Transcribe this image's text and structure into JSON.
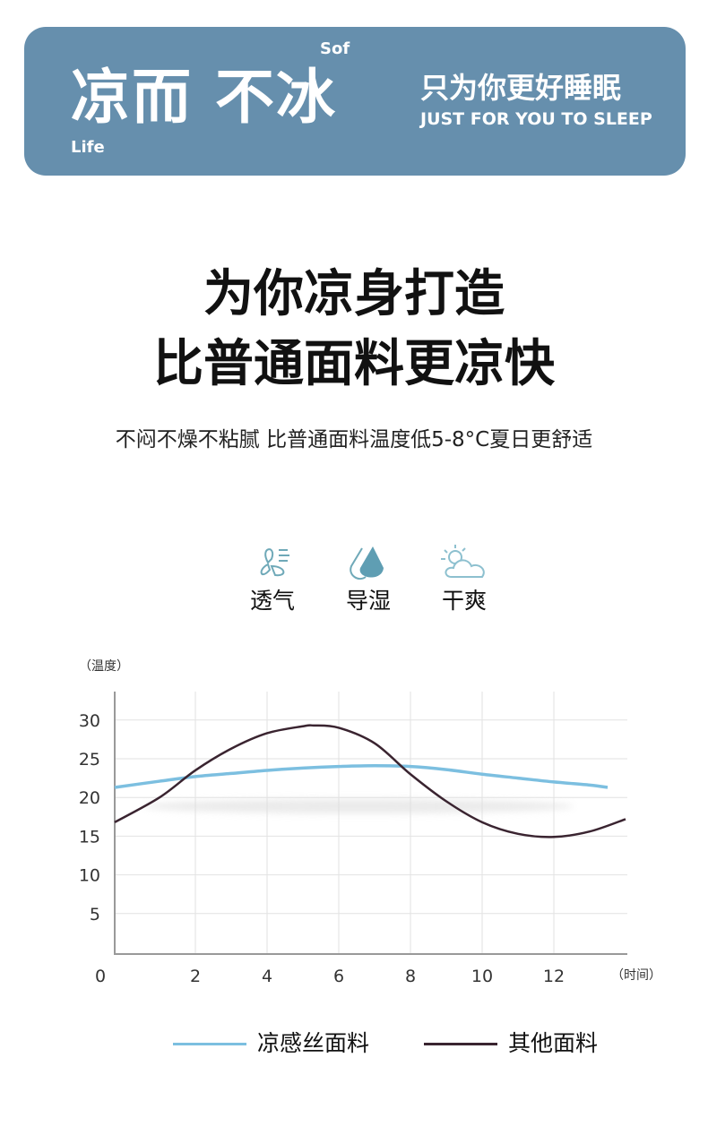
{
  "banner": {
    "title": "凉而 不冰",
    "sof": "Sof",
    "life": "Life",
    "slogan": "只为你更好睡眠",
    "slogan_en": "JUST FOR YOU TO SLEEP",
    "color": "#668fad"
  },
  "headline": {
    "line1": "为你凉身打造",
    "line2": "比普通面料更凉快",
    "subtitle": "不闷不燥不粘腻 比普通面料温度低5-8°C夏日更舒适"
  },
  "features": [
    {
      "label": "透气",
      "icon": "fan-icon"
    },
    {
      "label": "导湿",
      "icon": "water-drop-icon"
    },
    {
      "label": "干爽",
      "icon": "sun-cloud-icon"
    }
  ],
  "chart_data": {
    "type": "line",
    "ylabel": "（温度）",
    "xlabel": "（时间）",
    "xlim": [
      0,
      14
    ],
    "ylim": [
      0,
      33
    ],
    "xticks": [
      0,
      2,
      4,
      6,
      8,
      10,
      12
    ],
    "yticks": [
      5,
      10,
      15,
      20,
      25,
      30
    ],
    "grid": true,
    "legend_placement": "bottom",
    "series": [
      {
        "name": "凉感丝面料",
        "color": "#7cbfe0",
        "x": [
          0,
          1,
          2,
          3,
          4,
          5,
          6,
          7,
          8,
          9,
          10,
          11,
          12,
          13,
          13.5
        ],
        "y": [
          21.3,
          22.1,
          22.7,
          23.1,
          23.5,
          23.8,
          24,
          24.1,
          24,
          23.6,
          23,
          22.5,
          22,
          21.6,
          21.3
        ]
      },
      {
        "name": "其他面料",
        "color": "#3a2430",
        "x": [
          0,
          1,
          2,
          3,
          4,
          5,
          5.3,
          6,
          7,
          8,
          9,
          10,
          11,
          12,
          13,
          14
        ],
        "y": [
          16.8,
          20,
          23.5,
          26.3,
          28.3,
          29.2,
          29.3,
          29,
          27,
          23,
          19.5,
          16.8,
          15.3,
          14.9,
          15.6,
          17.2
        ]
      }
    ]
  }
}
